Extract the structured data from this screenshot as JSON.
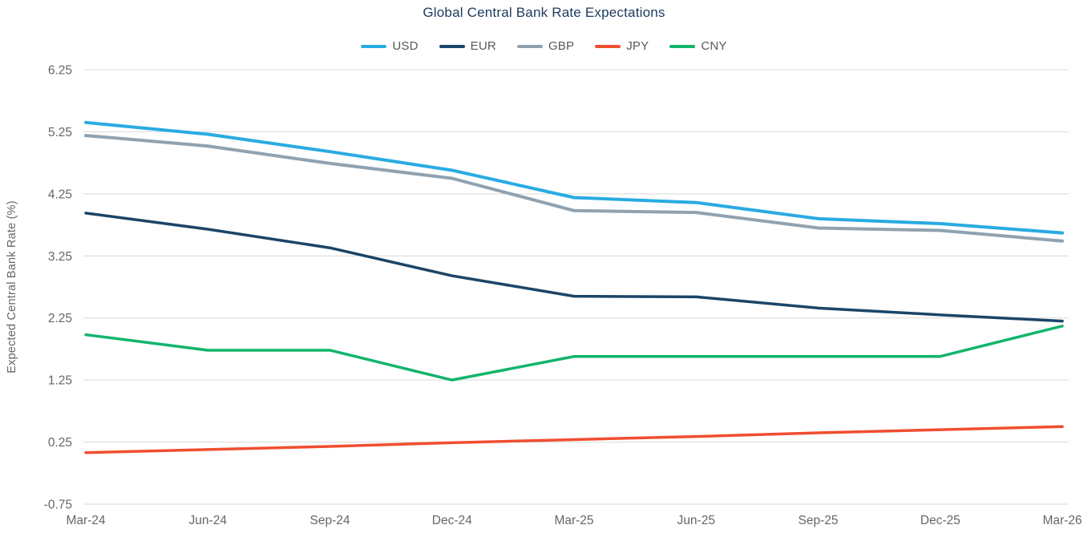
{
  "page": {
    "background": "#FFFFFF"
  },
  "chart_data": {
    "type": "line",
    "title": "Global Central Bank Rate Expectations",
    "xlabel": "",
    "ylabel": "Expected Central Bank Rate (%)",
    "categories": [
      "Mar-24",
      "Jun-24",
      "Sep-24",
      "Dec-24",
      "Mar-25",
      "Jun-25",
      "Sep-25",
      "Dec-25",
      "Mar-26"
    ],
    "series": [
      {
        "name": "USD",
        "color": "#29ABE2",
        "width": 4,
        "values": [
          5.4,
          5.21,
          4.93,
          4.63,
          4.19,
          4.11,
          3.85,
          3.77,
          3.62
        ]
      },
      {
        "name": "EUR",
        "color": "#1B4568",
        "width": 3.5,
        "values": [
          3.94,
          3.68,
          3.38,
          2.93,
          2.6,
          2.59,
          2.41,
          2.3,
          2.2
        ]
      },
      {
        "name": "GBP",
        "color": "#90A2B0",
        "width": 4,
        "values": [
          5.19,
          5.02,
          4.74,
          4.5,
          3.98,
          3.95,
          3.7,
          3.66,
          3.49
        ]
      },
      {
        "name": "JPY",
        "color": "#F04E30",
        "width": 3.5,
        "values": [
          0.08,
          0.13,
          0.18,
          0.24,
          0.29,
          0.34,
          0.4,
          0.45,
          0.5
        ]
      },
      {
        "name": "CNY",
        "color": "#13B56C",
        "width": 3.5,
        "values": [
          1.98,
          1.73,
          1.73,
          1.25,
          1.63,
          1.63,
          1.63,
          1.63,
          2.12
        ]
      }
    ],
    "ylim": [
      -0.75,
      6.25
    ],
    "yticks": [
      6.25,
      5.25,
      4.25,
      3.25,
      2.25,
      1.25,
      0.25,
      -0.75
    ],
    "grid": "horizontal-only",
    "legend_position": "top-center",
    "colors": {
      "title": "#1B3A5C",
      "axis_text": "#666666",
      "gridline": "#D9D9D9"
    }
  }
}
